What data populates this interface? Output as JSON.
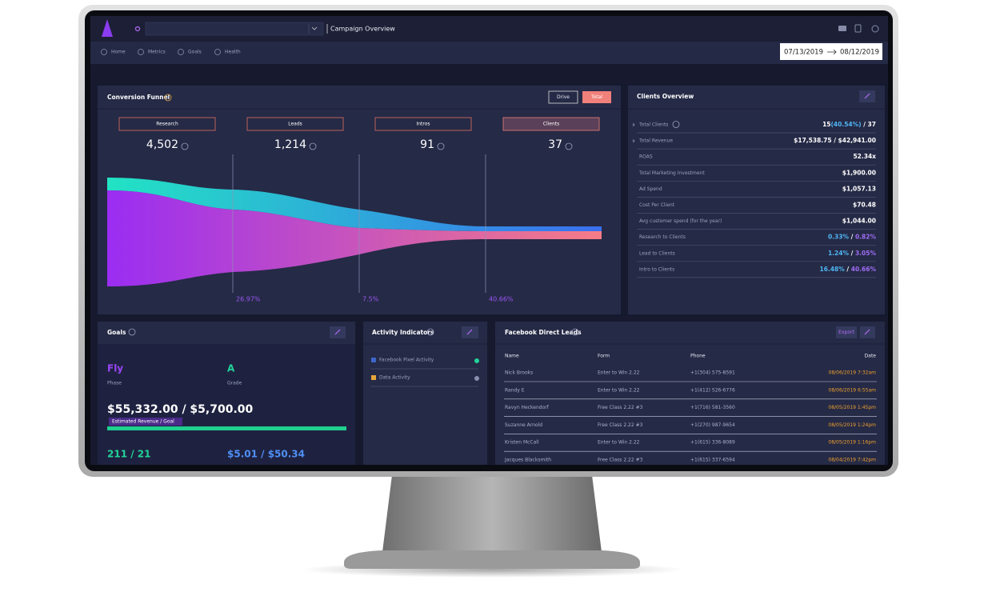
{
  "header": {
    "title": "Campaign Overview",
    "date_from": "07/13/2019",
    "date_to": "08/12/2019"
  },
  "nav": [
    "Home",
    "Metrics",
    "Goals",
    "Health"
  ],
  "conversion_funnel": {
    "title": "Conversion Funnel",
    "buttons": [
      "Drive",
      "Total"
    ],
    "stages": [
      {
        "label": "Research",
        "value": "4,502"
      },
      {
        "label": "Leads",
        "value": "1,214"
      },
      {
        "label": "Intros",
        "value": "91"
      },
      {
        "label": "Clients",
        "value": "37"
      }
    ],
    "rates": [
      "26.97%",
      "7.5%",
      "40.66%"
    ]
  },
  "clients_overview": {
    "title": "Clients Overview",
    "rows": [
      {
        "label": "Total Clients",
        "value": [
          "15",
          {
            "text": "(40.54%)",
            "color": "#4fb6f5"
          },
          " / 37"
        ]
      },
      {
        "label": "Total Revenue",
        "value": [
          "$17,538.75 / $42,941.00"
        ]
      },
      {
        "label": "ROAS",
        "value": [
          "52.34x"
        ]
      },
      {
        "label": "Total Marketing Investment",
        "value": [
          "$1,900.00"
        ]
      },
      {
        "label": "Ad Spend",
        "value": [
          "$1,057.13"
        ]
      },
      {
        "label": "Cost Per Client",
        "value": [
          "$70.48"
        ]
      },
      {
        "label": "Avg customer spend (for the year)",
        "value": [
          "$1,044.00"
        ]
      },
      {
        "label": "Research to Clients",
        "value": [
          {
            "text": "0.33%",
            "color": "#4fb6f5"
          },
          " / ",
          {
            "text": "0.82%",
            "color": "#a06cf5"
          }
        ]
      },
      {
        "label": "Lead to Clients",
        "value": [
          {
            "text": "1.24%",
            "color": "#4fb6f5"
          },
          " / ",
          {
            "text": "3.05%",
            "color": "#a06cf5"
          }
        ]
      },
      {
        "label": "Intro to Clients",
        "value": [
          {
            "text": "16.48%",
            "color": "#4fb6f5"
          },
          " / ",
          {
            "text": "40.66%",
            "color": "#a06cf5"
          }
        ]
      }
    ]
  },
  "goals": {
    "title": "Goals",
    "phase": "Fly",
    "phase_label": "Phase",
    "grade": "A",
    "grade_label": "Grade",
    "revenue": "$55,332.00 / $5,700.00",
    "revenue_label": "Estimated Revenue / Goal",
    "count": "211 / 21",
    "cost": "$5.01 / $50.34"
  },
  "activity_indicators": {
    "title": "Activity Indicators",
    "items": [
      "Facebook Pixel Activity",
      "Data Activity"
    ]
  },
  "facebook_leads": {
    "title": "Facebook Direct Leads",
    "export": "Export",
    "columns": [
      "Name",
      "Form",
      "Phone",
      "Date"
    ],
    "rows": [
      [
        "Nick Brooks",
        "Enter to Win 2.22",
        "+1(304) 575-8591",
        "08/06/2019 7:32am"
      ],
      [
        "Randy E",
        "Enter to Win 2.22",
        "+1(412) 526-6776",
        "08/06/2019 6:55am"
      ],
      [
        "Ravyn Heckendorf",
        "Free Class 2.22 #3",
        "+1(716) 581-3560",
        "08/05/2019 1:45pm"
      ],
      [
        "Suzanne Arnold",
        "Free Class 2.22 #3",
        "+1(270) 987-9654",
        "08/05/2019 1:24pm"
      ],
      [
        "Kristen McCall",
        "Enter to Win 2.22",
        "+1(615) 336-8089",
        "08/05/2019 1:16pm"
      ],
      [
        "Jacques Blacksmith",
        "Free Class 2.22 #3",
        "+1(615) 337-6594",
        "08/04/2019 7:42pm"
      ]
    ]
  }
}
